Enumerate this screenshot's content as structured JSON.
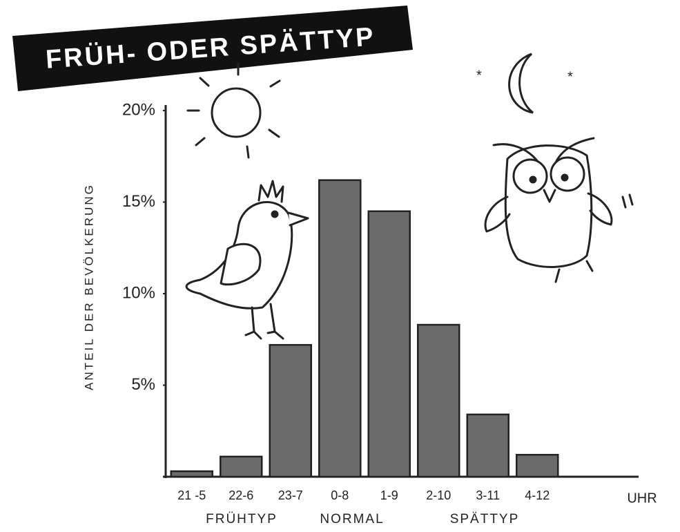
{
  "chart_data": {
    "type": "bar",
    "title": "FRÜH- ODER SPÄTTYP",
    "y_label": "ANTEIL DER BEVÖLKERUNG",
    "x_unit": "UHR",
    "categories": [
      "21 -5",
      "22-6",
      "23-7",
      "0-8",
      "1-9",
      "2-10",
      "3-11",
      "4-12"
    ],
    "values": [
      0.3,
      1.1,
      7.2,
      16.2,
      14.5,
      8.3,
      3.4,
      1.2
    ],
    "groups": [
      "FRÜHTYP",
      "NORMAL",
      "SPÄTTYP"
    ],
    "color": "#6b6b6b",
    "ylim": [
      0,
      20
    ],
    "yticks": [
      {
        "value": 5,
        "label": "5%"
      },
      {
        "value": 10,
        "label": "10%"
      },
      {
        "value": 15,
        "label": "15%"
      },
      {
        "value": 20,
        "label": "20%"
      }
    ],
    "grid": false
  }
}
